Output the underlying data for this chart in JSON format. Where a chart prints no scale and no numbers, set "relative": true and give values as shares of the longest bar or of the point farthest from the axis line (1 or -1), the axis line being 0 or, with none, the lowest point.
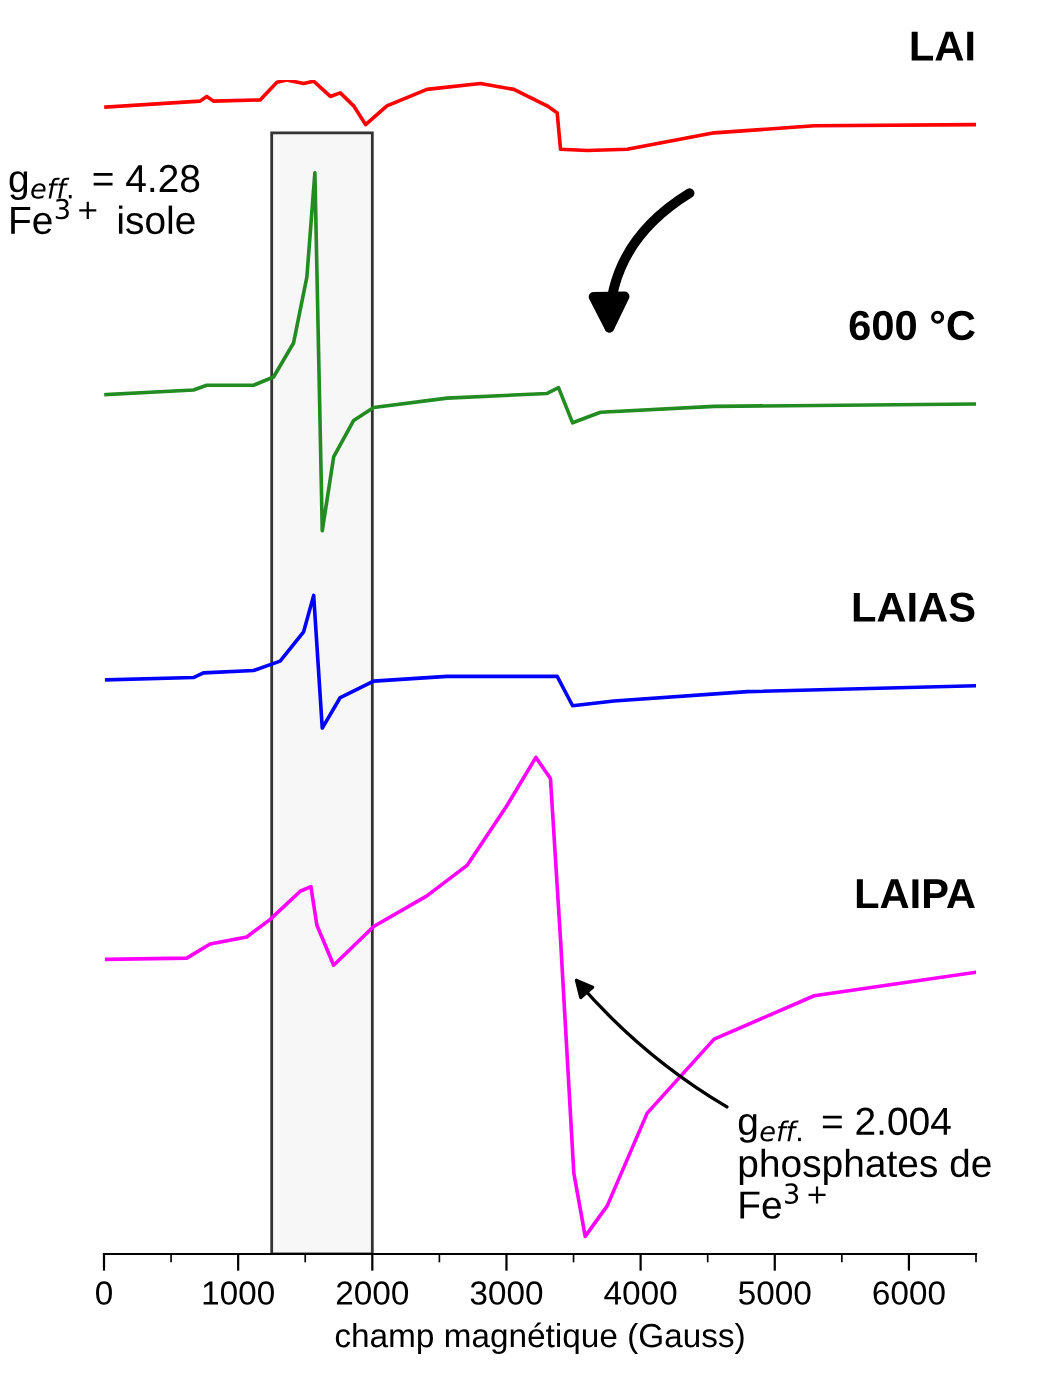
{
  "chart_data": {
    "type": "line",
    "relative": true,
    "xlabel": "champ magnétique (Gauss)",
    "xlim": [
      0,
      6500
    ],
    "xticks": [
      0,
      {
        "value": 500,
        "label": null
      },
      1000,
      {
        "value": 1500,
        "label": null
      },
      2000,
      {
        "value": 2500,
        "label": null
      },
      3000,
      {
        "value": 3500,
        "label": null
      },
      4000,
      {
        "value": 4500,
        "label": null
      },
      5000,
      {
        "value": 5500,
        "label": null
      },
      6000,
      {
        "value": 6500,
        "label": null
      }
    ],
    "tick_labels": "x",
    "grid": false,
    "legend": false,
    "marker": "none",
    "line_style": "solid",
    "series": [
      {
        "name": "LAI",
        "color": "#ff0000",
        "x": [
          15,
          716,
          766,
          816,
          1164,
          1289,
          1363,
          1488,
          1563,
          1687,
          1761,
          1861,
          1950,
          2109,
          2407,
          2806,
          3055,
          3303,
          3378,
          3403,
          3602,
          3900,
          4548,
          5294,
          6500
        ],
        "values": [
          0.977,
          0.982,
          0.986,
          0.982,
          0.983,
          0.998,
          1.0,
          0.997,
          0.999,
          0.986,
          0.989,
          0.978,
          0.962,
          0.978,
          0.992,
          0.997,
          0.992,
          0.978,
          0.972,
          0.941,
          0.94,
          0.941,
          0.955,
          0.961,
          0.962
        ]
      },
      {
        "name": "600 °C",
        "color": "#228b22",
        "x": [
          15,
          667,
          766,
          1115,
          1264,
          1413,
          1512,
          1572,
          1627,
          1712,
          1861,
          2010,
          2557,
          3303,
          3388,
          3493,
          3701,
          4548,
          6500
        ],
        "values": [
          0.732,
          0.736,
          0.74,
          0.74,
          0.747,
          0.776,
          0.832,
          0.921,
          0.616,
          0.679,
          0.71,
          0.721,
          0.729,
          0.733,
          0.738,
          0.708,
          0.717,
          0.722,
          0.724
        ]
      },
      {
        "name": "LAIAS",
        "color": "#0000ff",
        "x": [
          20,
          667,
          741,
          1115,
          1313,
          1488,
          1563,
          1627,
          1761,
          2010,
          2557,
          3378,
          3493,
          3801,
          4796,
          6500
        ],
        "values": [
          0.489,
          0.491,
          0.495,
          0.497,
          0.505,
          0.53,
          0.561,
          0.448,
          0.474,
          0.488,
          0.492,
          0.492,
          0.467,
          0.471,
          0.479,
          0.484
        ]
      },
      {
        "name": "LAIPA",
        "color": "#ff00ff",
        "x": [
          20,
          617,
          791,
          1064,
          1239,
          1463,
          1542,
          1587,
          1712,
          2010,
          2407,
          2706,
          3004,
          3219,
          3328,
          3403,
          3502,
          3587,
          3751,
          4049,
          4548,
          5294,
          6500
        ],
        "values": [
          0.251,
          0.252,
          0.264,
          0.27,
          0.285,
          0.309,
          0.313,
          0.28,
          0.246,
          0.279,
          0.305,
          0.331,
          0.382,
          0.423,
          0.405,
          0.268,
          0.069,
          0.015,
          0.041,
          0.12,
          0.183,
          0.22,
          0.24
        ]
      }
    ],
    "bands": [
      {
        "axis": "x",
        "from": 1250,
        "to": 2000
      }
    ],
    "annotations": [
      "g$_{eff.}$ = 4.28\nFe$^{3+}$ isole",
      {
        "text": "g$_{eff.}$ = 2.004\nphosphates de\nFe$^{3+}$",
        "x": 3478,
        "y": 0.239
      }
    ]
  }
}
